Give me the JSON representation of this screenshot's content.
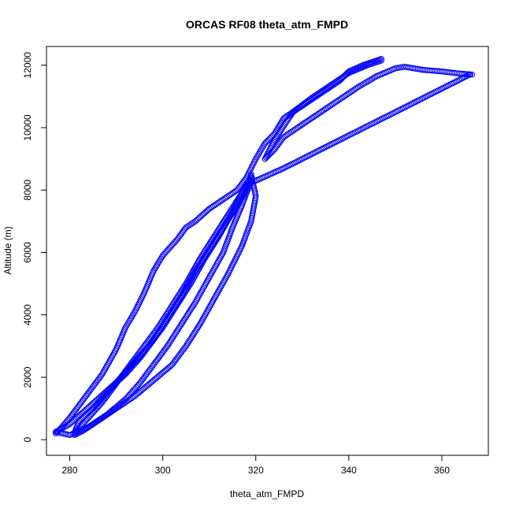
{
  "chart_data": {
    "type": "scatter",
    "title": "ORCAS RF08 theta_atm_FMPD",
    "xlabel": "theta_atm_FMPD",
    "ylabel": "Altitude (m)",
    "xlim": [
      275,
      370
    ],
    "ylim": [
      -500,
      12600
    ],
    "xticks": [
      280,
      300,
      320,
      340,
      360
    ],
    "yticks": [
      0,
      2000,
      4000,
      6000,
      8000,
      10000,
      12000
    ],
    "marker": "open-circle",
    "color": "#0000ff",
    "grid": false,
    "legend": "none",
    "series": [
      {
        "values": [
          [
            277,
            200
          ],
          [
            278,
            350
          ],
          [
            280,
            700
          ],
          [
            282,
            1100
          ],
          [
            284,
            1500
          ],
          [
            287,
            2100
          ],
          [
            290,
            2900
          ],
          [
            292,
            3600
          ],
          [
            294,
            4100
          ],
          [
            296,
            4700
          ],
          [
            298,
            5400
          ],
          [
            300,
            5900
          ],
          [
            303,
            6400
          ],
          [
            305,
            6800
          ],
          [
            307,
            7000
          ],
          [
            310,
            7400
          ],
          [
            313,
            7700
          ],
          [
            316,
            8000
          ],
          [
            318,
            8400
          ],
          [
            320,
            9000
          ],
          [
            322,
            9500
          ],
          [
            324,
            9800
          ],
          [
            326,
            10300
          ],
          [
            330,
            10700
          ],
          [
            334,
            11100
          ],
          [
            338,
            11500
          ],
          [
            340,
            11800
          ],
          [
            343,
            12000
          ],
          [
            345,
            12100
          ],
          [
            347,
            12200
          ]
        ]
      },
      {
        "values": [
          [
            347,
            12150
          ],
          [
            344,
            12000
          ],
          [
            340,
            11750
          ],
          [
            336,
            11350
          ],
          [
            332,
            10950
          ],
          [
            328,
            10500
          ],
          [
            326,
            10050
          ],
          [
            324,
            9600
          ],
          [
            322,
            9000
          ]
        ]
      },
      {
        "values": [
          [
            322,
            9000
          ],
          [
            324,
            9300
          ],
          [
            326,
            9700
          ],
          [
            330,
            10100
          ],
          [
            334,
            10500
          ],
          [
            338,
            10900
          ],
          [
            342,
            11300
          ],
          [
            346,
            11650
          ],
          [
            350,
            11900
          ],
          [
            352,
            11950
          ],
          [
            356,
            11850
          ],
          [
            360,
            11800
          ],
          [
            364,
            11730
          ],
          [
            366.5,
            11700
          ]
        ]
      },
      {
        "values": [
          [
            366,
            11700
          ],
          [
            362,
            11400
          ],
          [
            358,
            11100
          ],
          [
            354,
            10800
          ],
          [
            350,
            10500
          ],
          [
            346,
            10200
          ],
          [
            342,
            9900
          ],
          [
            338,
            9600
          ],
          [
            334,
            9300
          ],
          [
            330,
            9000
          ],
          [
            326,
            8700
          ],
          [
            323,
            8500
          ],
          [
            320,
            8300
          ],
          [
            318,
            8200
          ]
        ]
      },
      {
        "values": [
          [
            318,
            8200
          ],
          [
            315,
            7300
          ],
          [
            312,
            6500
          ],
          [
            309,
            5800
          ],
          [
            306,
            5000
          ],
          [
            303,
            4300
          ],
          [
            300,
            3600
          ],
          [
            297,
            3000
          ],
          [
            294,
            2500
          ],
          [
            291,
            2000
          ],
          [
            288,
            1500
          ],
          [
            285,
            1000
          ],
          [
            282,
            600
          ],
          [
            281,
            200
          ]
        ]
      },
      {
        "values": [
          [
            281,
            200
          ],
          [
            284,
            700
          ],
          [
            287,
            1200
          ],
          [
            290,
            1800
          ],
          [
            293,
            2400
          ],
          [
            296,
            3000
          ],
          [
            299,
            3600
          ],
          [
            302,
            4300
          ],
          [
            305,
            5000
          ],
          [
            308,
            5800
          ],
          [
            311,
            6500
          ],
          [
            314,
            7200
          ],
          [
            317,
            7900
          ],
          [
            319,
            8300
          ]
        ]
      },
      {
        "values": [
          [
            319,
            8300
          ],
          [
            317,
            7500
          ],
          [
            315,
            6800
          ],
          [
            313,
            6000
          ],
          [
            310,
            5200
          ],
          [
            307,
            4400
          ],
          [
            304,
            3700
          ],
          [
            301,
            3000
          ],
          [
            298,
            2400
          ],
          [
            295,
            1800
          ],
          [
            292,
            1300
          ],
          [
            288,
            800
          ],
          [
            284,
            400
          ],
          [
            280,
            150
          ],
          [
            277,
            250
          ]
        ]
      },
      {
        "values": [
          [
            277,
            250
          ],
          [
            280,
            500
          ],
          [
            283,
            900
          ],
          [
            286,
            1300
          ],
          [
            289,
            1700
          ],
          [
            292,
            2100
          ],
          [
            295,
            2600
          ],
          [
            298,
            3200
          ],
          [
            301,
            3900
          ],
          [
            304,
            4600
          ],
          [
            307,
            5400
          ],
          [
            310,
            6100
          ],
          [
            313,
            6800
          ],
          [
            316,
            7500
          ],
          [
            318,
            8000
          ],
          [
            319,
            8500
          ]
        ]
      },
      {
        "values": [
          [
            319,
            8500
          ],
          [
            320,
            7800
          ],
          [
            319,
            7000
          ],
          [
            317,
            6200
          ],
          [
            314,
            5300
          ],
          [
            311,
            4500
          ],
          [
            308,
            3700
          ],
          [
            305,
            3000
          ],
          [
            302,
            2400
          ],
          [
            298,
            1900
          ],
          [
            294,
            1400
          ],
          [
            290,
            1000
          ],
          [
            286,
            600
          ],
          [
            283,
            300
          ],
          [
            281,
            150
          ]
        ]
      }
    ]
  }
}
